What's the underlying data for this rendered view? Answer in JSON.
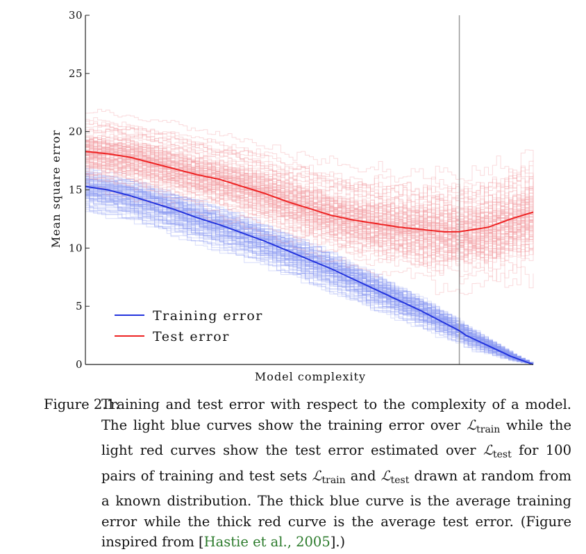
{
  "chart_data": {
    "type": "line",
    "xlabel": "Model complexity",
    "ylabel": "Mean square error",
    "ylim": [
      0,
      30
    ],
    "yticks": [
      0,
      5,
      10,
      15,
      20,
      25,
      30
    ],
    "xticks": [],
    "grid": false,
    "legend_placement": "lower-left",
    "vline_x": 0.835,
    "x": [
      0.0,
      0.05,
      0.1,
      0.15,
      0.2,
      0.25,
      0.3,
      0.35,
      0.4,
      0.45,
      0.5,
      0.55,
      0.6,
      0.65,
      0.7,
      0.75,
      0.8,
      0.835,
      0.85,
      0.9,
      0.95,
      1.0
    ],
    "series": [
      {
        "name": "Training error",
        "color": "#2233dd",
        "values": [
          15.3,
          15.0,
          14.5,
          13.9,
          13.3,
          12.6,
          12.0,
          11.3,
          10.6,
          9.8,
          9.0,
          8.2,
          7.3,
          6.4,
          5.5,
          4.6,
          3.6,
          2.9,
          2.5,
          1.6,
          0.7,
          0.0
        ]
      },
      {
        "name": "Test error",
        "color": "#ee2222",
        "values": [
          18.3,
          18.1,
          17.8,
          17.3,
          16.8,
          16.3,
          15.9,
          15.3,
          14.7,
          14.0,
          13.4,
          12.8,
          12.4,
          12.1,
          11.8,
          11.6,
          11.4,
          11.4,
          11.5,
          11.8,
          12.5,
          13.1
        ]
      }
    ],
    "light_curves": {
      "count": 100,
      "train_color": "#8c9cf2",
      "test_color": "#f3a3a8"
    }
  },
  "caption": {
    "prefix": "Figure 2.1:",
    "line1": "Training and test error with respect to the complexity of a model.",
    "part_a": "The light blue curves show the training error over ",
    "part_b": " while the light red curves show the test error estimated over ",
    "part_c": " for 100 pairs of training and test sets ",
    "part_d": " and ",
    "part_e": " drawn at random from a known distribution. The thick blue curve is the average training error while the thick red curve is the average test error. (Figure inspired from [",
    "citation": "Hastie et al., 2005",
    "part_f": "].)",
    "set_symbol": "ℒ",
    "train_sub": "train",
    "test_sub": "test"
  }
}
